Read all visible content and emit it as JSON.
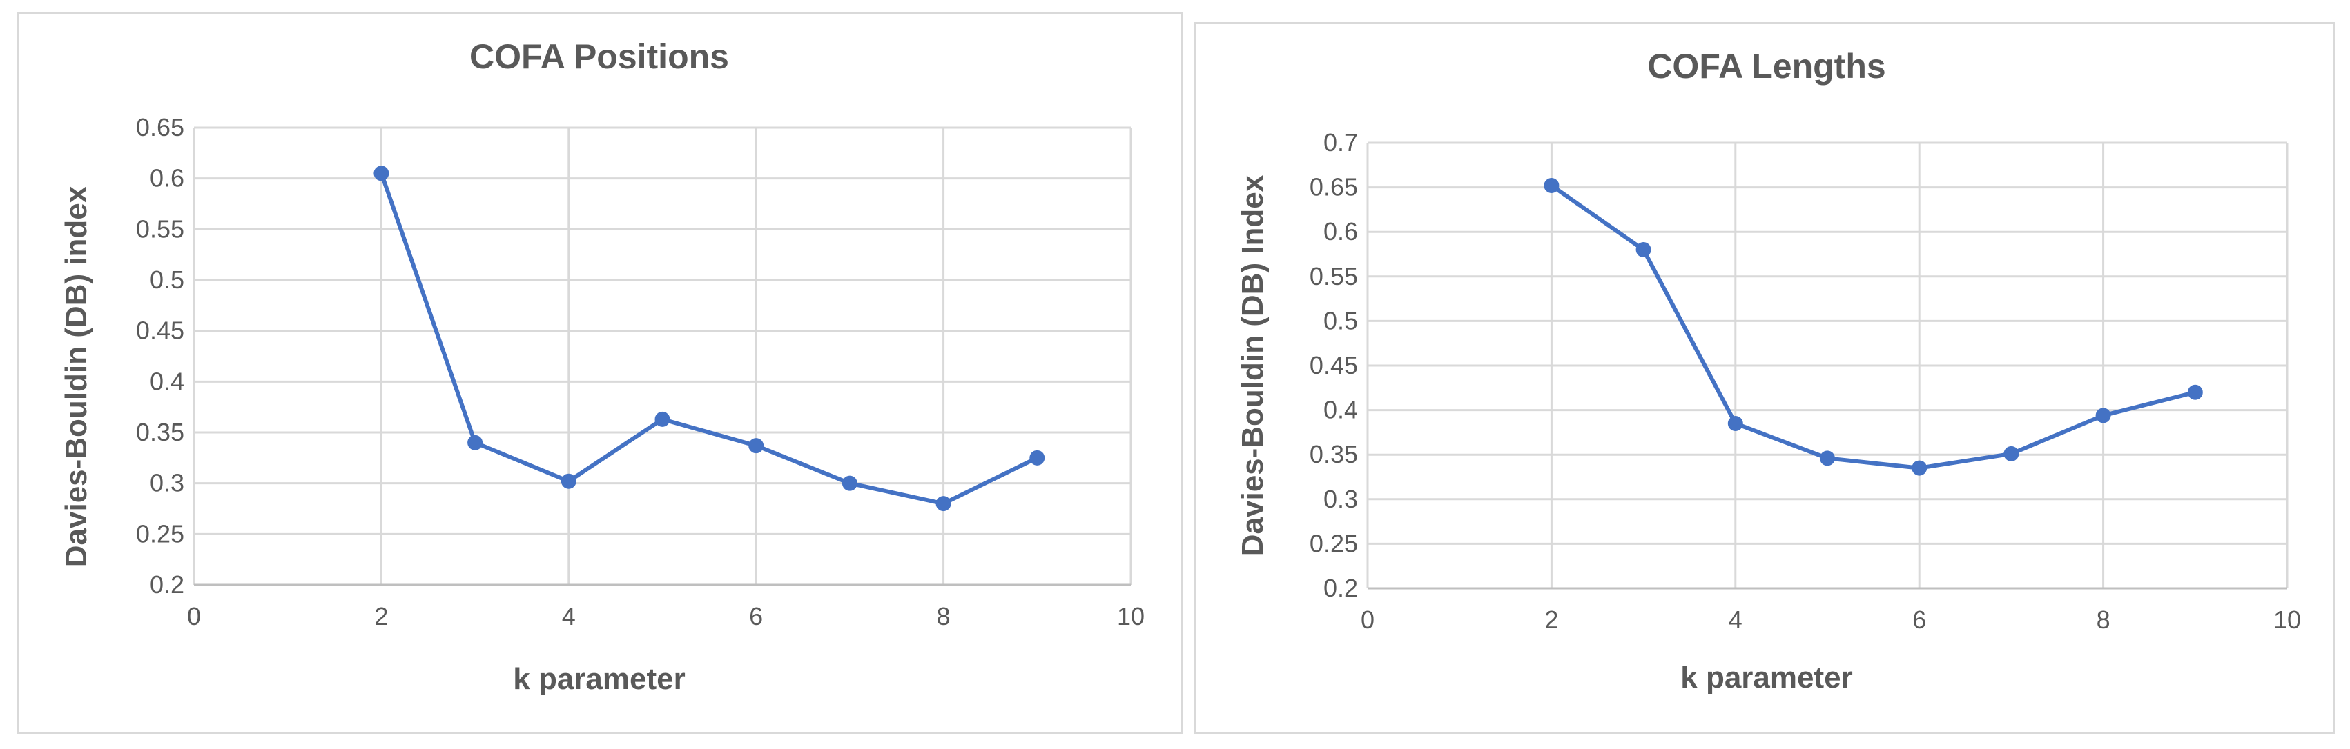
{
  "chart_data": [
    {
      "type": "scatter",
      "title": "COFA Positions",
      "xlabel": "k parameter",
      "ylabel": "Davies-Bouldin (DB) index",
      "xlim": [
        0,
        10
      ],
      "ylim": [
        0.2,
        0.65
      ],
      "x_ticks": [
        0,
        2,
        4,
        6,
        8,
        10
      ],
      "y_ticks": [
        0.2,
        0.25,
        0.3,
        0.35,
        0.4,
        0.45,
        0.5,
        0.55,
        0.6,
        0.65
      ],
      "grid": true,
      "series": [
        {
          "color": "#4472c4",
          "x": [
            2,
            3,
            4,
            5,
            6,
            7,
            8,
            9
          ],
          "y": [
            0.605,
            0.34,
            0.302,
            0.363,
            0.337,
            0.3,
            0.28,
            0.325
          ]
        }
      ]
    },
    {
      "type": "scatter",
      "title": "COFA Lengths",
      "xlabel": "k parameter",
      "ylabel": "Davies-Bouldin (DB) Index",
      "xlim": [
        0,
        10
      ],
      "ylim": [
        0.2,
        0.7
      ],
      "x_ticks": [
        0,
        2,
        4,
        6,
        8,
        10
      ],
      "y_ticks": [
        0.2,
        0.25,
        0.3,
        0.35,
        0.4,
        0.45,
        0.5,
        0.55,
        0.6,
        0.65,
        0.7
      ],
      "grid": true,
      "series": [
        {
          "color": "#4472c4",
          "x": [
            2,
            3,
            4,
            5,
            6,
            7,
            8,
            9
          ],
          "y": [
            0.652,
            0.58,
            0.385,
            0.346,
            0.335,
            0.351,
            0.394,
            0.42
          ]
        }
      ]
    }
  ]
}
